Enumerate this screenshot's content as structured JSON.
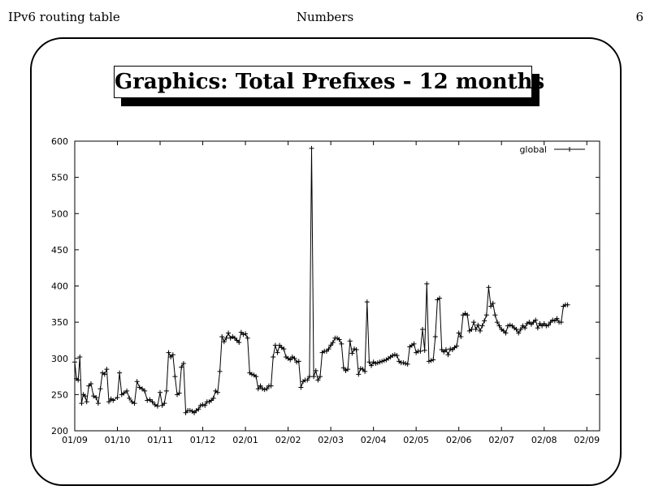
{
  "header": {
    "left": "IPv6 routing table",
    "center": "Numbers",
    "right": "6"
  },
  "slide_title": "Graphics: Total Prefixes - 12 months",
  "chart_data": {
    "type": "line",
    "title": "",
    "xlabel": "",
    "ylabel": "",
    "ylim": [
      200,
      600
    ],
    "yticks": [
      200,
      250,
      300,
      350,
      400,
      450,
      500,
      550,
      600
    ],
    "xticks": [
      "01/09",
      "01/10",
      "01/11",
      "01/12",
      "02/01",
      "02/02",
      "02/03",
      "02/04",
      "02/05",
      "02/06",
      "02/07",
      "02/08",
      "02/09"
    ],
    "xlim": [
      0,
      12.3
    ],
    "legend_position": "top-right",
    "grid": false,
    "series": [
      {
        "name": "global",
        "marker": "plus",
        "points": [
          [
            0.0,
            295
          ],
          [
            0.04,
            272
          ],
          [
            0.08,
            270
          ],
          [
            0.12,
            302
          ],
          [
            0.16,
            238
          ],
          [
            0.2,
            250
          ],
          [
            0.24,
            248
          ],
          [
            0.28,
            240
          ],
          [
            0.33,
            262
          ],
          [
            0.38,
            265
          ],
          [
            0.44,
            248
          ],
          [
            0.5,
            246
          ],
          [
            0.55,
            238
          ],
          [
            0.6,
            258
          ],
          [
            0.65,
            280
          ],
          [
            0.7,
            278
          ],
          [
            0.75,
            285
          ],
          [
            0.8,
            240
          ],
          [
            0.85,
            244
          ],
          [
            0.9,
            242
          ],
          [
            1.0,
            246
          ],
          [
            1.05,
            280
          ],
          [
            1.1,
            250
          ],
          [
            1.15,
            252
          ],
          [
            1.22,
            255
          ],
          [
            1.28,
            245
          ],
          [
            1.34,
            240
          ],
          [
            1.4,
            238
          ],
          [
            1.46,
            268
          ],
          [
            1.52,
            260
          ],
          [
            1.58,
            258
          ],
          [
            1.64,
            255
          ],
          [
            1.7,
            242
          ],
          [
            1.76,
            243
          ],
          [
            1.82,
            240
          ],
          [
            1.88,
            236
          ],
          [
            1.94,
            234
          ],
          [
            2.0,
            253
          ],
          [
            2.05,
            235
          ],
          [
            2.1,
            238
          ],
          [
            2.15,
            255
          ],
          [
            2.2,
            308
          ],
          [
            2.25,
            302
          ],
          [
            2.3,
            305
          ],
          [
            2.35,
            275
          ],
          [
            2.4,
            250
          ],
          [
            2.45,
            252
          ],
          [
            2.5,
            288
          ],
          [
            2.55,
            293
          ],
          [
            2.6,
            225
          ],
          [
            2.65,
            228
          ],
          [
            2.7,
            228
          ],
          [
            2.75,
            227
          ],
          [
            2.8,
            225
          ],
          [
            2.85,
            228
          ],
          [
            2.9,
            230
          ],
          [
            2.95,
            235
          ],
          [
            3.0,
            236
          ],
          [
            3.05,
            235
          ],
          [
            3.1,
            240
          ],
          [
            3.15,
            240
          ],
          [
            3.2,
            242
          ],
          [
            3.25,
            245
          ],
          [
            3.3,
            255
          ],
          [
            3.35,
            253
          ],
          [
            3.4,
            282
          ],
          [
            3.45,
            330
          ],
          [
            3.5,
            323
          ],
          [
            3.55,
            328
          ],
          [
            3.6,
            335
          ],
          [
            3.65,
            328
          ],
          [
            3.7,
            330
          ],
          [
            3.75,
            328
          ],
          [
            3.8,
            325
          ],
          [
            3.85,
            322
          ],
          [
            3.9,
            336
          ],
          [
            3.95,
            333
          ],
          [
            4.0,
            334
          ],
          [
            4.05,
            328
          ],
          [
            4.1,
            280
          ],
          [
            4.15,
            278
          ],
          [
            4.2,
            277
          ],
          [
            4.25,
            275
          ],
          [
            4.3,
            258
          ],
          [
            4.35,
            262
          ],
          [
            4.4,
            258
          ],
          [
            4.45,
            257
          ],
          [
            4.5,
            258
          ],
          [
            4.55,
            262
          ],
          [
            4.6,
            262
          ],
          [
            4.65,
            302
          ],
          [
            4.7,
            318
          ],
          [
            4.75,
            308
          ],
          [
            4.8,
            318
          ],
          [
            4.85,
            315
          ],
          [
            4.9,
            313
          ],
          [
            4.95,
            302
          ],
          [
            5.0,
            300
          ],
          [
            5.05,
            298
          ],
          [
            5.1,
            302
          ],
          [
            5.15,
            300
          ],
          [
            5.2,
            295
          ],
          [
            5.25,
            296
          ],
          [
            5.3,
            260
          ],
          [
            5.35,
            268
          ],
          [
            5.4,
            270
          ],
          [
            5.45,
            270
          ],
          [
            5.5,
            275
          ],
          [
            5.55,
            590
          ],
          [
            5.6,
            275
          ],
          [
            5.65,
            283
          ],
          [
            5.7,
            270
          ],
          [
            5.75,
            275
          ],
          [
            5.8,
            308
          ],
          [
            5.85,
            310
          ],
          [
            5.9,
            310
          ],
          [
            5.95,
            313
          ],
          [
            6.0,
            318
          ],
          [
            6.05,
            322
          ],
          [
            6.1,
            328
          ],
          [
            6.15,
            328
          ],
          [
            6.2,
            326
          ],
          [
            6.25,
            320
          ],
          [
            6.3,
            287
          ],
          [
            6.35,
            283
          ],
          [
            6.4,
            285
          ],
          [
            6.45,
            324
          ],
          [
            6.5,
            307
          ],
          [
            6.55,
            313
          ],
          [
            6.6,
            312
          ],
          [
            6.65,
            278
          ],
          [
            6.7,
            286
          ],
          [
            6.75,
            285
          ],
          [
            6.8,
            282
          ],
          [
            6.85,
            378
          ],
          [
            6.9,
            295
          ],
          [
            6.95,
            290
          ],
          [
            7.0,
            295
          ],
          [
            7.05,
            293
          ],
          [
            7.1,
            294
          ],
          [
            7.15,
            295
          ],
          [
            7.2,
            296
          ],
          [
            7.25,
            297
          ],
          [
            7.3,
            298
          ],
          [
            7.35,
            300
          ],
          [
            7.4,
            302
          ],
          [
            7.45,
            304
          ],
          [
            7.5,
            305
          ],
          [
            7.55,
            304
          ],
          [
            7.6,
            296
          ],
          [
            7.65,
            294
          ],
          [
            7.7,
            294
          ],
          [
            7.75,
            293
          ],
          [
            7.8,
            292
          ],
          [
            7.85,
            316
          ],
          [
            7.9,
            318
          ],
          [
            7.95,
            320
          ],
          [
            8.0,
            308
          ],
          [
            8.05,
            310
          ],
          [
            8.1,
            310
          ],
          [
            8.15,
            340
          ],
          [
            8.2,
            311
          ],
          [
            8.25,
            403
          ],
          [
            8.3,
            296
          ],
          [
            8.35,
            297
          ],
          [
            8.4,
            298
          ],
          [
            8.45,
            330
          ],
          [
            8.5,
            381
          ],
          [
            8.55,
            383
          ],
          [
            8.6,
            312
          ],
          [
            8.65,
            309
          ],
          [
            8.7,
            312
          ],
          [
            8.75,
            305
          ],
          [
            8.8,
            313
          ],
          [
            8.85,
            312
          ],
          [
            8.9,
            315
          ],
          [
            8.95,
            317
          ],
          [
            9.0,
            335
          ],
          [
            9.05,
            330
          ],
          [
            9.1,
            360
          ],
          [
            9.15,
            362
          ],
          [
            9.2,
            360
          ],
          [
            9.25,
            338
          ],
          [
            9.3,
            340
          ],
          [
            9.35,
            350
          ],
          [
            9.4,
            340
          ],
          [
            9.45,
            346
          ],
          [
            9.5,
            338
          ],
          [
            9.55,
            345
          ],
          [
            9.6,
            352
          ],
          [
            9.65,
            360
          ],
          [
            9.7,
            398
          ],
          [
            9.75,
            372
          ],
          [
            9.8,
            376
          ],
          [
            9.85,
            360
          ],
          [
            9.9,
            350
          ],
          [
            9.95,
            345
          ],
          [
            10.0,
            340
          ],
          [
            10.05,
            338
          ],
          [
            10.1,
            335
          ],
          [
            10.15,
            345
          ],
          [
            10.2,
            346
          ],
          [
            10.25,
            345
          ],
          [
            10.3,
            342
          ],
          [
            10.35,
            340
          ],
          [
            10.4,
            335
          ],
          [
            10.45,
            340
          ],
          [
            10.5,
            345
          ],
          [
            10.55,
            342
          ],
          [
            10.6,
            348
          ],
          [
            10.65,
            350
          ],
          [
            10.7,
            347
          ],
          [
            10.75,
            350
          ],
          [
            10.8,
            353
          ],
          [
            10.85,
            342
          ],
          [
            10.9,
            348
          ],
          [
            10.95,
            345
          ],
          [
            11.0,
            348
          ],
          [
            11.05,
            345
          ],
          [
            11.1,
            346
          ],
          [
            11.15,
            350
          ],
          [
            11.2,
            353
          ],
          [
            11.25,
            352
          ],
          [
            11.3,
            355
          ],
          [
            11.35,
            350
          ],
          [
            11.4,
            350
          ],
          [
            11.45,
            372
          ],
          [
            11.5,
            374
          ],
          [
            11.55,
            374
          ]
        ]
      }
    ]
  }
}
